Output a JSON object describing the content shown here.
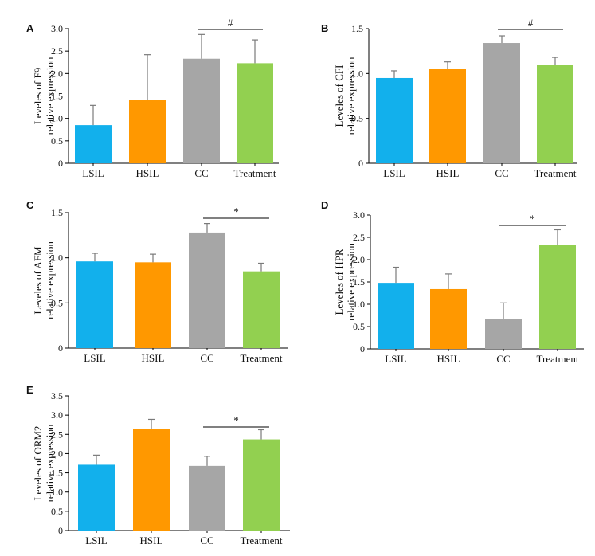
{
  "colors": {
    "LSIL": "#12b0ec",
    "HSIL": "#ff9800",
    "CC": "#a6a6a6",
    "Treatment": "#92d050"
  },
  "chart_data": [
    {
      "type": "bar",
      "panel": "A",
      "categories": [
        "LSIL",
        "HSIL",
        "CC",
        "Treatment"
      ],
      "values": [
        0.85,
        1.42,
        2.33,
        2.23
      ],
      "errors": [
        0.44,
        1.0,
        0.54,
        0.52
      ],
      "ylabel": [
        "Leveles of F9",
        "relative expression"
      ],
      "ylim": [
        0,
        3.0
      ],
      "yticks": [
        "0",
        "0.5",
        "1.0",
        "1.5",
        "2.0",
        "2.5",
        "3.0"
      ],
      "significance": {
        "from": "CC",
        "to": "Treatment",
        "symbol": "#"
      }
    },
    {
      "type": "bar",
      "panel": "B",
      "categories": [
        "LSIL",
        "HSIL",
        "CC",
        "Treatment"
      ],
      "values": [
        0.95,
        1.05,
        1.34,
        1.1
      ],
      "errors": [
        0.08,
        0.08,
        0.08,
        0.08
      ],
      "ylabel": [
        "Leveles of CFI",
        "relative expression"
      ],
      "ylim": [
        0,
        1.5
      ],
      "yticks": [
        "0",
        "0.5",
        "1.0",
        "1.5"
      ],
      "significance": {
        "from": "CC",
        "to": "Treatment",
        "symbol": "#"
      }
    },
    {
      "type": "bar",
      "panel": "C",
      "categories": [
        "LSIL",
        "HSIL",
        "CC",
        "Treatment"
      ],
      "values": [
        0.96,
        0.95,
        1.28,
        0.85
      ],
      "errors": [
        0.09,
        0.09,
        0.1,
        0.09
      ],
      "ylabel": [
        "Leveles of AFM",
        "relative expression"
      ],
      "ylim": [
        0,
        1.5
      ],
      "yticks": [
        "0",
        "0.5",
        "1.0",
        "1.5"
      ],
      "significance": {
        "from": "CC",
        "to": "Treatment",
        "symbol": "*"
      }
    },
    {
      "type": "bar",
      "panel": "D",
      "categories": [
        "LSIL",
        "HSIL",
        "CC",
        "Treatment"
      ],
      "values": [
        1.48,
        1.34,
        0.67,
        2.33
      ],
      "errors": [
        0.35,
        0.34,
        0.36,
        0.34
      ],
      "ylabel": [
        "Leveles of HPR",
        "relative expression"
      ],
      "ylim": [
        0,
        3.0
      ],
      "yticks": [
        "0",
        "0.5",
        "1.0",
        "1.5",
        "2.0",
        "2.5",
        "3.0"
      ],
      "significance": {
        "from": "CC",
        "to": "Treatment",
        "symbol": "*"
      }
    },
    {
      "type": "bar",
      "panel": "E",
      "categories": [
        "LSIL",
        "HSIL",
        "CC",
        "Treatment"
      ],
      "values": [
        1.71,
        2.65,
        1.68,
        2.37
      ],
      "errors": [
        0.25,
        0.24,
        0.25,
        0.25
      ],
      "ylabel": [
        "Leveles of ORM2",
        "relative expression"
      ],
      "ylim": [
        0,
        3.5
      ],
      "yticks": [
        "0",
        "0.5",
        "1.0",
        "1.5",
        "2.0",
        "2.5",
        "3.0",
        "3.5"
      ],
      "significance": {
        "from": "CC",
        "to": "Treatment",
        "symbol": "*"
      }
    }
  ]
}
